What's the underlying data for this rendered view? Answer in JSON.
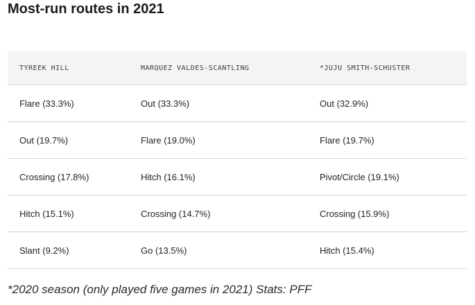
{
  "title": "Most-run routes in 2021",
  "table": {
    "headers": [
      "TYREEK HILL",
      "MARQUEZ VALDES-SCANTLING",
      "*JUJU SMITH-SCHUSTER"
    ],
    "rows": [
      [
        "Flare (33.3%)",
        "Out (33.3%)",
        "Out (32.9%)"
      ],
      [
        "Out (19.7%)",
        "Flare (19.0%)",
        "Flare (19.7%)"
      ],
      [
        "Crossing (17.8%)",
        "Hitch (16.1%)",
        "Pivot/Circle (19.1%)"
      ],
      [
        "Hitch (15.1%)",
        "Crossing (14.7%)",
        "Crossing (15.9%)"
      ],
      [
        "Slant (9.2%)",
        "Go (13.5%)",
        "Hitch (15.4%)"
      ]
    ]
  },
  "footnote": "*2020 season (only played five games in 2021)   Stats: PFF"
}
